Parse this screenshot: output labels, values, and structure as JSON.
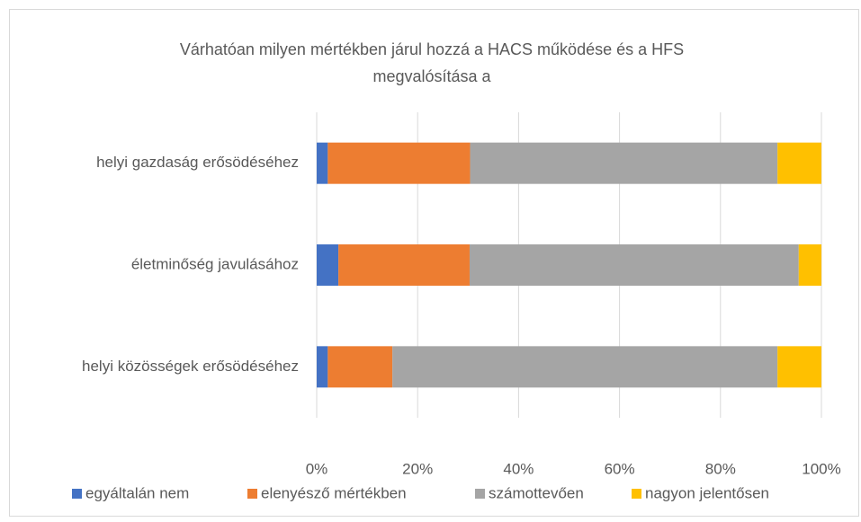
{
  "chart_data": {
    "type": "stacked_barh",
    "title": "Várhatóan milyen mértékben járul hozzá a HACS működése és a HFS megvalósítása a",
    "categories": [
      "helyi gazdaság erősödéséhez",
      "életminőség javulásához",
      "helyi közösségek erősödéséhez"
    ],
    "series": [
      {
        "name": "egyáltalán nem",
        "color": "#4472c4",
        "values": [
          2.2,
          4.3,
          2.2
        ]
      },
      {
        "name": "elenyésző mértékben",
        "color": "#ed7d31",
        "values": [
          28.2,
          26,
          12.8
        ]
      },
      {
        "name": "számottevően",
        "color": "#a5a5a5",
        "values": [
          60.9,
          65.2,
          76.3
        ]
      },
      {
        "name": "nagyon jelentősen",
        "color": "#ffc000",
        "values": [
          8.7,
          4.5,
          8.7
        ]
      }
    ],
    "xlim": [
      0,
      100
    ],
    "xticks": [
      {
        "value": 0,
        "label": "0%"
      },
      {
        "value": 20,
        "label": "20%"
      },
      {
        "value": 40,
        "label": "40%"
      },
      {
        "value": 60,
        "label": "60%"
      },
      {
        "value": 80,
        "label": "80%"
      },
      {
        "value": 100,
        "label": "100%"
      }
    ],
    "grid": true,
    "legend": "bottom"
  }
}
